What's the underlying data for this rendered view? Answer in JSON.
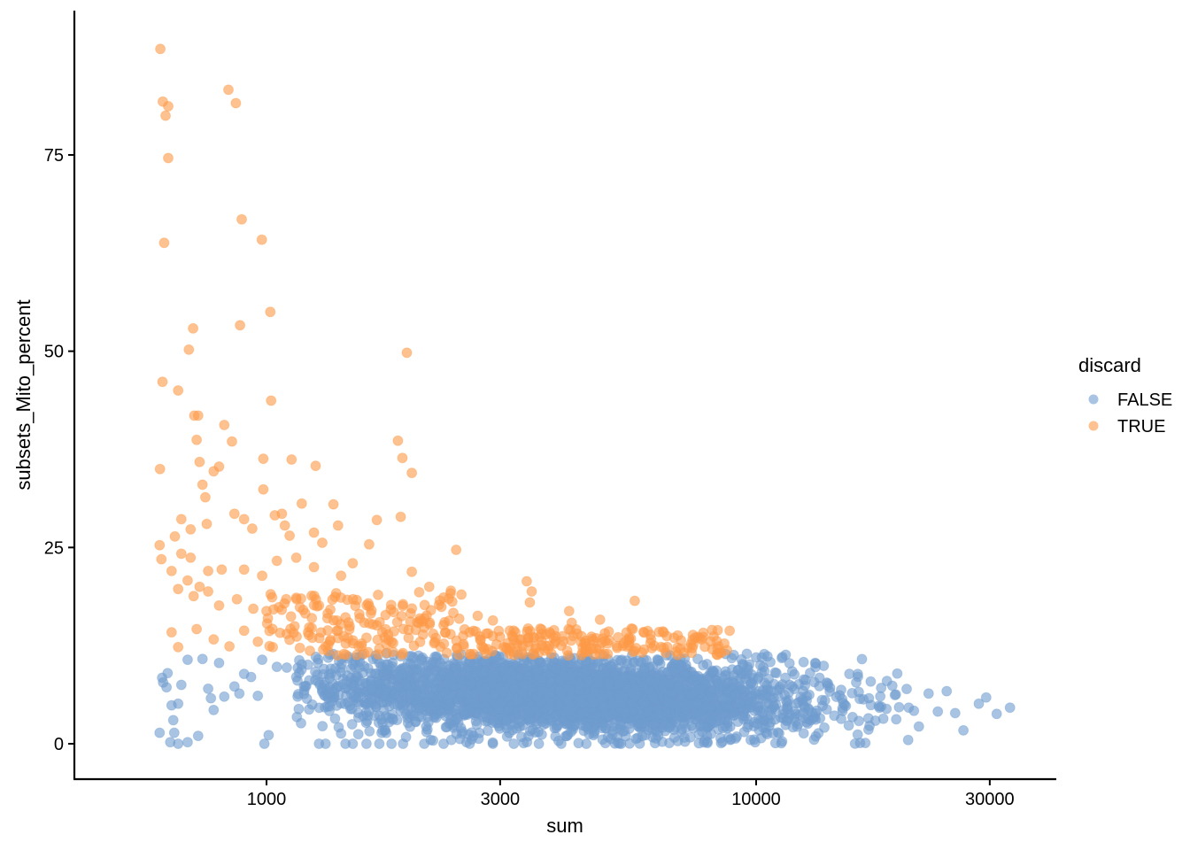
{
  "chart_data": {
    "type": "scatter",
    "title": "",
    "xlabel": "sum",
    "ylabel": "subsets_Mito_percent",
    "x_scale": "log10",
    "xlim": [
      550,
      37000
    ],
    "ylim": [
      -4.5,
      93
    ],
    "x_ticks": [
      1000,
      3000,
      10000,
      30000
    ],
    "x_tick_labels": [
      "1000",
      "3000",
      "10000",
      "30000"
    ],
    "y_ticks": [
      0,
      25,
      50,
      75
    ],
    "y_tick_labels": [
      "0",
      "25",
      "50",
      "75"
    ],
    "grid": false,
    "legend": {
      "title": "discard",
      "position": "right",
      "entries": [
        {
          "label": "FALSE",
          "color": "#6f9ccf"
        },
        {
          "label": "TRUE",
          "color": "#fd9a47"
        }
      ]
    },
    "point_alpha": 0.6,
    "series": [
      {
        "name": "TRUE",
        "color": "#fd9a47",
        "points": [
          [
            607,
            88.5
          ],
          [
            614,
            81.8
          ],
          [
            622,
            80.0
          ],
          [
            630,
            81.2
          ],
          [
            630,
            74.6
          ],
          [
            618,
            63.8
          ],
          [
            613,
            46.1
          ],
          [
            606,
            35.0
          ],
          [
            605,
            25.3
          ],
          [
            610,
            23.5
          ],
          [
            694,
            50.2
          ],
          [
            708,
            52.9
          ],
          [
            725,
            41.8
          ],
          [
            712,
            41.8
          ],
          [
            660,
            45.0
          ],
          [
            836,
            83.3
          ],
          [
            866,
            81.6
          ],
          [
            890,
            66.8
          ],
          [
            978,
            64.2
          ],
          [
            1018,
            55.0
          ],
          [
            883,
            53.3
          ],
          [
            1022,
            43.7
          ],
          [
            1935,
            49.8
          ],
          [
            1855,
            38.6
          ],
          [
            1895,
            36.4
          ],
          [
            1980,
            34.5
          ],
          [
            1880,
            28.9
          ],
          [
            1680,
            28.5
          ],
          [
            1260,
            35.4
          ],
          [
            1125,
            36.2
          ],
          [
            985,
            36.3
          ],
          [
            985,
            32.4
          ],
          [
            1180,
            30.6
          ],
          [
            1370,
            30.5
          ],
          [
            820,
            40.6
          ],
          [
            850,
            38.5
          ],
          [
            800,
            35.3
          ],
          [
            780,
            34.7
          ],
          [
            750,
            31.4
          ],
          [
            740,
            33.0
          ],
          [
            730,
            35.9
          ],
          [
            720,
            38.7
          ],
          [
            650,
            26.4
          ],
          [
            670,
            28.6
          ],
          [
            700,
            27.3
          ],
          [
            755,
            28.0
          ],
          [
            860,
            29.3
          ],
          [
            900,
            28.6
          ],
          [
            935,
            27.4
          ],
          [
            1040,
            29.1
          ],
          [
            1075,
            29.3
          ],
          [
            1090,
            27.8
          ],
          [
            1115,
            26.5
          ],
          [
            1250,
            26.9
          ],
          [
            1300,
            25.6
          ],
          [
            1400,
            27.8
          ],
          [
            1620,
            25.4
          ],
          [
            1500,
            23.0
          ],
          [
            1420,
            21.4
          ],
          [
            1980,
            21.9
          ],
          [
            2050,
            19.3
          ],
          [
            2150,
            20.0
          ],
          [
            2250,
            17.7
          ],
          [
            2440,
            24.7
          ],
          [
            2380,
            19.5
          ],
          [
            2500,
            19.0
          ],
          [
            2700,
            16.3
          ],
          [
            2900,
            15.7
          ],
          [
            3400,
            20.7
          ],
          [
            3450,
            18.0
          ],
          [
            3480,
            19.4
          ],
          [
            3650,
            14.0
          ],
          [
            4150,
            16.9
          ],
          [
            4200,
            15.4
          ],
          [
            4800,
            15.8
          ],
          [
            5650,
            18.2
          ],
          [
            6100,
            13.3
          ],
          [
            6800,
            13.5
          ],
          [
            1250,
            22.5
          ],
          [
            1150,
            23.7
          ],
          [
            1050,
            23.3
          ],
          [
            980,
            21.4
          ],
          [
            900,
            22.2
          ],
          [
            810,
            22.2
          ],
          [
            760,
            22.0
          ],
          [
            700,
            23.7
          ],
          [
            670,
            24.2
          ],
          [
            640,
            22.0
          ],
          [
            660,
            19.7
          ],
          [
            690,
            20.8
          ],
          [
            730,
            20.0
          ],
          [
            710,
            18.8
          ],
          [
            760,
            19.4
          ],
          [
            800,
            17.6
          ],
          [
            870,
            18.4
          ],
          [
            940,
            17.2
          ],
          [
            1000,
            16.9
          ],
          [
            1060,
            17.4
          ],
          [
            1150,
            18.6
          ],
          [
            1200,
            16.6
          ],
          [
            1280,
            17.6
          ],
          [
            1350,
            17.1
          ],
          [
            1450,
            16.1
          ],
          [
            1550,
            16.0
          ],
          [
            1650,
            15.2
          ],
          [
            1750,
            16.4
          ],
          [
            1850,
            15.5
          ],
          [
            1950,
            14.5
          ],
          [
            2100,
            14.8
          ],
          [
            2300,
            15.1
          ],
          [
            2600,
            14.2
          ],
          [
            3000,
            13.6
          ],
          [
            3200,
            13.2
          ],
          [
            3800,
            14.0
          ],
          [
            4400,
            13.7
          ],
          [
            5000,
            14.3
          ],
          [
            5500,
            12.9
          ],
          [
            640,
            14.2
          ],
          [
            660,
            12.3
          ],
          [
            720,
            14.6
          ],
          [
            780,
            13.3
          ],
          [
            840,
            12.4
          ],
          [
            900,
            14.4
          ],
          [
            960,
            13.0
          ],
          [
            1030,
            12.3
          ],
          [
            1100,
            14.0
          ],
          [
            1170,
            12.2
          ],
          [
            1240,
            13.5
          ],
          [
            1320,
            12.4
          ],
          [
            1400,
            14.4
          ],
          [
            1500,
            12.8
          ],
          [
            1600,
            13.5
          ],
          [
            1700,
            12.1
          ],
          [
            1800,
            13.0
          ],
          [
            2000,
            12.5
          ],
          [
            2200,
            12.8
          ],
          [
            2450,
            12.2
          ],
          [
            2750,
            12.4
          ],
          [
            3100,
            12.1
          ],
          [
            3550,
            12.3
          ],
          [
            4000,
            12.5
          ],
          [
            4600,
            12.1
          ],
          [
            5200,
            12.2
          ],
          [
            5900,
            12.0
          ],
          [
            7000,
            12.1
          ],
          [
            7800,
            13.6
          ]
        ]
      },
      {
        "name": "FALSE",
        "color": "#6f9ccf",
        "points": [
          [
            605,
            1.4
          ],
          [
            612,
            8.4
          ],
          [
            615,
            7.8
          ],
          [
            625,
            7.2
          ],
          [
            628,
            9.0
          ],
          [
            640,
            4.9
          ],
          [
            645,
            3.0
          ],
          [
            648,
            1.4
          ],
          [
            636,
            0.2
          ],
          [
            660,
            0.0
          ],
          [
            660,
            5.1
          ],
          [
            670,
            7.5
          ],
          [
            690,
            10.7
          ],
          [
            690,
            0.2
          ],
          [
            725,
            1.0
          ],
          [
            740,
            10.8
          ],
          [
            760,
            7.0
          ],
          [
            770,
            5.8
          ],
          [
            780,
            4.3
          ],
          [
            800,
            10.3
          ],
          [
            820,
            6.0
          ],
          [
            860,
            7.3
          ],
          [
            880,
            6.4
          ],
          [
            900,
            8.9
          ],
          [
            930,
            8.5
          ],
          [
            960,
            6.1
          ],
          [
            980,
            10.7
          ],
          [
            990,
            0.0
          ],
          [
            1010,
            1.1
          ],
          [
            1050,
            9.8
          ],
          [
            1100,
            9.7
          ],
          [
            1150,
            8.5
          ],
          [
            1200,
            7.3
          ],
          [
            1240,
            5.0
          ],
          [
            1280,
            0.0
          ],
          [
            1320,
            0.0
          ],
          [
            1380,
            3.2
          ],
          [
            1420,
            1.3
          ],
          [
            1450,
            0.0
          ],
          [
            1500,
            0.0
          ],
          [
            1600,
            0.0
          ],
          [
            1700,
            0.0
          ],
          [
            1800,
            0.0
          ],
          [
            1900,
            0.0
          ],
          [
            2100,
            0.0
          ],
          [
            2300,
            0.0
          ],
          [
            2600,
            0.0
          ],
          [
            2900,
            0.0
          ],
          [
            3200,
            0.0
          ],
          [
            3600,
            0.0
          ],
          [
            4000,
            0.0
          ],
          [
            4500,
            0.0
          ],
          [
            5300,
            0.0
          ],
          [
            9000,
            11.3
          ],
          [
            10200,
            10.0
          ],
          [
            11000,
            9.0
          ],
          [
            12500,
            10.4
          ],
          [
            13200,
            10.3
          ],
          [
            14000,
            7.4
          ],
          [
            15500,
            8.9
          ],
          [
            16200,
            6.6
          ],
          [
            17000,
            5.8
          ],
          [
            18000,
            7.1
          ],
          [
            18500,
            8.0
          ],
          [
            19200,
            6.2
          ],
          [
            20500,
            4.6
          ],
          [
            21000,
            4.2
          ],
          [
            21500,
            2.2
          ],
          [
            22500,
            6.4
          ],
          [
            23500,
            4.1
          ],
          [
            24500,
            6.7
          ],
          [
            25500,
            3.9
          ],
          [
            26500,
            1.7
          ],
          [
            28500,
            5.1
          ],
          [
            29500,
            5.9
          ],
          [
            31000,
            3.8
          ],
          [
            33000,
            4.6
          ]
        ],
        "dense_cloud": {
          "description": "Dense cloud of ~4000 cells; mito % mostly 2-11, x from ~1200 to ~18000 (log-normal centered near 4200)",
          "x_log10_mean": 3.62,
          "x_log10_sd": 0.24,
          "y_mean": 6.2,
          "y_sd": 2.4,
          "y_max": 11.5,
          "count": 3600
        }
      }
    ]
  }
}
